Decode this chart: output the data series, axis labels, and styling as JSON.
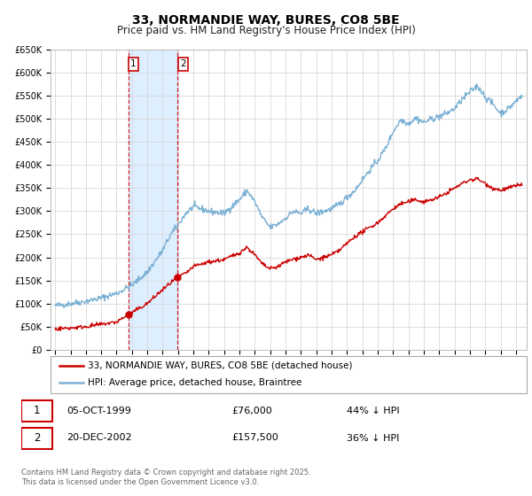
{
  "title": "33, NORMANDIE WAY, BURES, CO8 5BE",
  "subtitle": "Price paid vs. HM Land Registry's House Price Index (HPI)",
  "sale1_date": "05-OCT-1999",
  "sale1_price": 76000,
  "sale1_hpi_pct": "44% ↓ HPI",
  "sale1_x": 1999.76,
  "sale2_date": "20-DEC-2002",
  "sale2_price": 157500,
  "sale2_hpi_pct": "36% ↓ HPI",
  "sale2_x": 2002.97,
  "legend_label1": "33, NORMANDIE WAY, BURES, CO8 5BE (detached house)",
  "legend_label2": "HPI: Average price, detached house, Braintree",
  "footer": "Contains HM Land Registry data © Crown copyright and database right 2025.\nThis data is licensed under the Open Government Licence v3.0.",
  "red_color": "#cc0000",
  "blue_color": "#7ab0d4",
  "bg_color": "#ffffff",
  "grid_color": "#d8d8d8",
  "shade_color": "#ddeeff",
  "hpi_anchors": [
    [
      1995.0,
      95000
    ],
    [
      1996.0,
      100000
    ],
    [
      1997.0,
      105000
    ],
    [
      1998.0,
      112000
    ],
    [
      1999.0,
      122000
    ],
    [
      2000.0,
      140000
    ],
    [
      2001.0,
      168000
    ],
    [
      2002.0,
      215000
    ],
    [
      2002.5,
      248000
    ],
    [
      2003.0,
      270000
    ],
    [
      2003.5,
      295000
    ],
    [
      2004.0,
      310000
    ],
    [
      2005.0,
      300000
    ],
    [
      2006.0,
      295000
    ],
    [
      2007.0,
      325000
    ],
    [
      2007.5,
      345000
    ],
    [
      2008.0,
      320000
    ],
    [
      2008.5,
      285000
    ],
    [
      2009.0,
      265000
    ],
    [
      2009.5,
      272000
    ],
    [
      2010.0,
      285000
    ],
    [
      2010.5,
      300000
    ],
    [
      2011.0,
      295000
    ],
    [
      2011.5,
      305000
    ],
    [
      2012.0,
      295000
    ],
    [
      2012.5,
      300000
    ],
    [
      2013.0,
      305000
    ],
    [
      2013.5,
      315000
    ],
    [
      2014.0,
      330000
    ],
    [
      2014.5,
      345000
    ],
    [
      2015.0,
      368000
    ],
    [
      2015.5,
      390000
    ],
    [
      2016.0,
      410000
    ],
    [
      2016.5,
      435000
    ],
    [
      2017.0,
      472000
    ],
    [
      2017.5,
      498000
    ],
    [
      2018.0,
      490000
    ],
    [
      2018.5,
      502000
    ],
    [
      2019.0,
      492000
    ],
    [
      2019.5,
      500000
    ],
    [
      2020.0,
      505000
    ],
    [
      2020.5,
      512000
    ],
    [
      2021.0,
      522000
    ],
    [
      2021.5,
      542000
    ],
    [
      2022.0,
      558000
    ],
    [
      2022.5,
      572000
    ],
    [
      2023.0,
      548000
    ],
    [
      2023.5,
      532000
    ],
    [
      2024.0,
      512000
    ],
    [
      2024.5,
      522000
    ],
    [
      2025.0,
      538000
    ],
    [
      2025.3,
      548000
    ]
  ],
  "red_anchors": [
    [
      1995.0,
      45000
    ],
    [
      1996.0,
      47000
    ],
    [
      1997.0,
      50000
    ],
    [
      1998.0,
      55000
    ],
    [
      1999.0,
      60000
    ],
    [
      1999.76,
      76000
    ],
    [
      2000.0,
      80000
    ],
    [
      2001.0,
      100000
    ],
    [
      2002.0,
      130000
    ],
    [
      2002.97,
      157500
    ],
    [
      2003.5,
      165000
    ],
    [
      2004.0,
      180000
    ],
    [
      2005.0,
      190000
    ],
    [
      2006.0,
      195000
    ],
    [
      2007.0,
      210000
    ],
    [
      2007.5,
      222000
    ],
    [
      2008.0,
      205000
    ],
    [
      2008.5,
      185000
    ],
    [
      2009.0,
      175000
    ],
    [
      2009.5,
      180000
    ],
    [
      2010.0,
      190000
    ],
    [
      2010.5,
      196000
    ],
    [
      2011.0,
      200000
    ],
    [
      2011.5,
      205000
    ],
    [
      2012.0,
      195000
    ],
    [
      2012.5,
      200000
    ],
    [
      2013.0,
      205000
    ],
    [
      2013.5,
      215000
    ],
    [
      2014.0,
      230000
    ],
    [
      2014.5,
      245000
    ],
    [
      2015.0,
      255000
    ],
    [
      2015.5,
      265000
    ],
    [
      2016.0,
      275000
    ],
    [
      2016.5,
      290000
    ],
    [
      2017.0,
      305000
    ],
    [
      2017.5,
      316000
    ],
    [
      2018.0,
      320000
    ],
    [
      2018.5,
      325000
    ],
    [
      2019.0,
      320000
    ],
    [
      2019.5,
      325000
    ],
    [
      2020.0,
      330000
    ],
    [
      2020.5,
      340000
    ],
    [
      2021.0,
      350000
    ],
    [
      2021.5,
      360000
    ],
    [
      2022.0,
      368000
    ],
    [
      2022.5,
      370000
    ],
    [
      2023.0,
      360000
    ],
    [
      2023.5,
      350000
    ],
    [
      2024.0,
      345000
    ],
    [
      2024.5,
      350000
    ],
    [
      2025.0,
      355000
    ],
    [
      2025.3,
      358000
    ]
  ],
  "noise_seed": 42,
  "hpi_noise_std": 3500,
  "red_noise_std": 2200,
  "ylim": [
    0,
    650000
  ],
  "y_tick_step": 50000,
  "xlim_left": 1994.7,
  "xlim_right": 2025.7,
  "x_years": [
    1995,
    1996,
    1997,
    1998,
    1999,
    2000,
    2001,
    2002,
    2003,
    2004,
    2005,
    2006,
    2007,
    2008,
    2009,
    2010,
    2011,
    2012,
    2013,
    2014,
    2015,
    2016,
    2017,
    2018,
    2019,
    2020,
    2021,
    2022,
    2023,
    2024,
    2025
  ],
  "title_fontsize": 10,
  "subtitle_fontsize": 8.5,
  "tick_fontsize": 7,
  "legend_fontsize": 7.5,
  "table_fontsize": 8,
  "footer_fontsize": 6
}
